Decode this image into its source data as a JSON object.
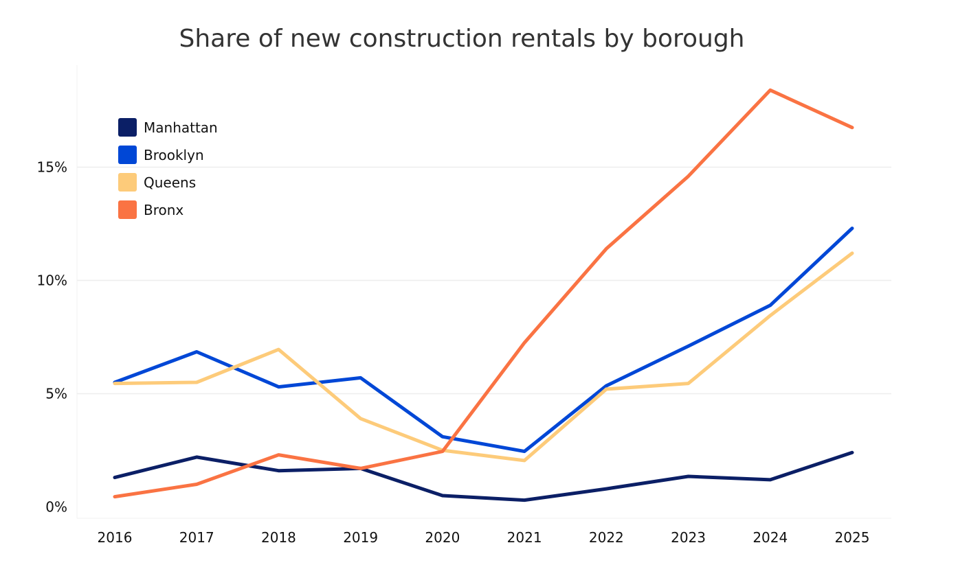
{
  "chart_data": {
    "type": "line",
    "title": "Share of new construction rentals by borough",
    "xlabel": "",
    "ylabel": "",
    "x": [
      "2016",
      "2017",
      "2018",
      "2019",
      "2020",
      "2021",
      "2022",
      "2023",
      "2024",
      "2025"
    ],
    "ylim": [
      -0.5,
      19.5
    ],
    "yticks": [
      {
        "value": 0,
        "label": "0%"
      },
      {
        "value": 5,
        "label": "5%"
      },
      {
        "value": 10,
        "label": "10%"
      },
      {
        "value": 15,
        "label": "15%"
      }
    ],
    "grid": true,
    "legend_position": "top-left",
    "series": [
      {
        "name": "Manhattan",
        "color": "#0b1f66",
        "values": [
          1.3,
          2.2,
          1.6,
          1.7,
          0.5,
          0.3,
          0.8,
          1.35,
          1.2,
          2.4
        ]
      },
      {
        "name": "Brooklyn",
        "color": "#0047d6",
        "values": [
          5.5,
          6.85,
          5.3,
          5.7,
          3.1,
          2.45,
          5.35,
          7.1,
          8.9,
          12.3
        ]
      },
      {
        "name": "Queens",
        "color": "#fdcb7a",
        "values": [
          5.45,
          5.5,
          6.95,
          3.9,
          2.5,
          2.05,
          5.2,
          5.45,
          8.45,
          11.2
        ]
      },
      {
        "name": "Bronx",
        "color": "#fa7343",
        "values": [
          0.45,
          1.0,
          2.3,
          1.7,
          2.45,
          7.25,
          11.4,
          14.6,
          18.4,
          16.75
        ]
      }
    ]
  }
}
